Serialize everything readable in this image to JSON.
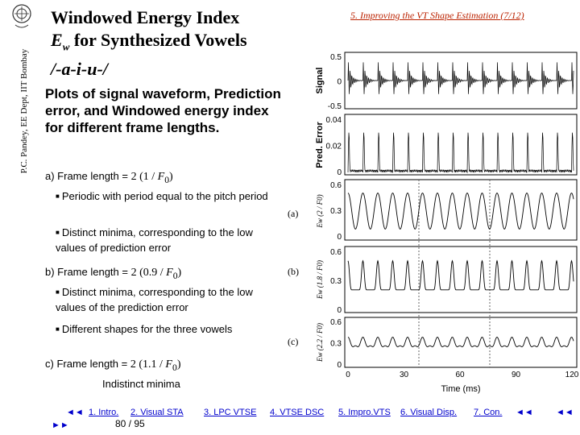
{
  "side_credit": "P.C. Pandey, EE Dept, IIT Bombay",
  "title": {
    "line1": "Windowed Energy Index",
    "line2_var": "E",
    "line2_sub": "w",
    "line2_rest": " for Synthesized Vowels",
    "line3": "/-a-i-u-/"
  },
  "header_link": "5. Improving the VT Shape Estimation (7/12)",
  "intro": "Plots of signal waveform, Prediction error, and Windowed energy index for different frame lengths.",
  "items": {
    "a_prefix": "a) Frame length = ",
    "a_formula": "2 (1 / F0)",
    "a_b1": "Periodic with period equal to the pitch period",
    "a_b2": "Distinct minima, corresponding to the low values of prediction error",
    "b_prefix": "b) Frame length = ",
    "b_formula": "2 (0.9 / F0)",
    "b_b1": "Distinct minima, corresponding to the low values of the prediction error",
    "b_b2": "Different shapes for the three vowels",
    "c_prefix": "c) Frame length = ",
    "c_formula": "2 (1.1 / F0)",
    "c_note": "Indistinct minima"
  },
  "figure": {
    "panel_labels": [
      "(a)",
      "(b)",
      "(c)"
    ],
    "signal_ylabel": "Signal",
    "pred_ylabel": "Pred. Error",
    "ew_ylabels": [
      "Ew (2 / F0)",
      "Ew (1.8 / F0)",
      "Ew (2.2 / F0)"
    ],
    "signal_ticks": [
      "0.5",
      "0",
      "-0.5"
    ],
    "pred_ticks": [
      "0.04",
      "0.02",
      "0"
    ],
    "ew_a_ticks": [
      "0.6",
      "0.3",
      "0"
    ],
    "ew_b_ticks": [
      "0.6",
      "0.3",
      "0"
    ],
    "ew_c_ticks": [
      "0.6",
      "0.3",
      "0"
    ],
    "x_ticks": [
      "0",
      "30",
      "60",
      "90",
      "120"
    ],
    "x_label": "Time (ms)"
  },
  "footer": {
    "nav_left_top": "◄◄",
    "nav_left_bottom": "►►",
    "links": [
      "1. Intro.",
      "2. Visual STA",
      "3. LPC VTSE",
      "4. VTSE DSC",
      "5. Impro.VTS",
      "6. Visual Disp.",
      "7. Con."
    ],
    "nav_right_1": "◄◄",
    "nav_right_2": "◄◄",
    "page": "80 / 95"
  }
}
